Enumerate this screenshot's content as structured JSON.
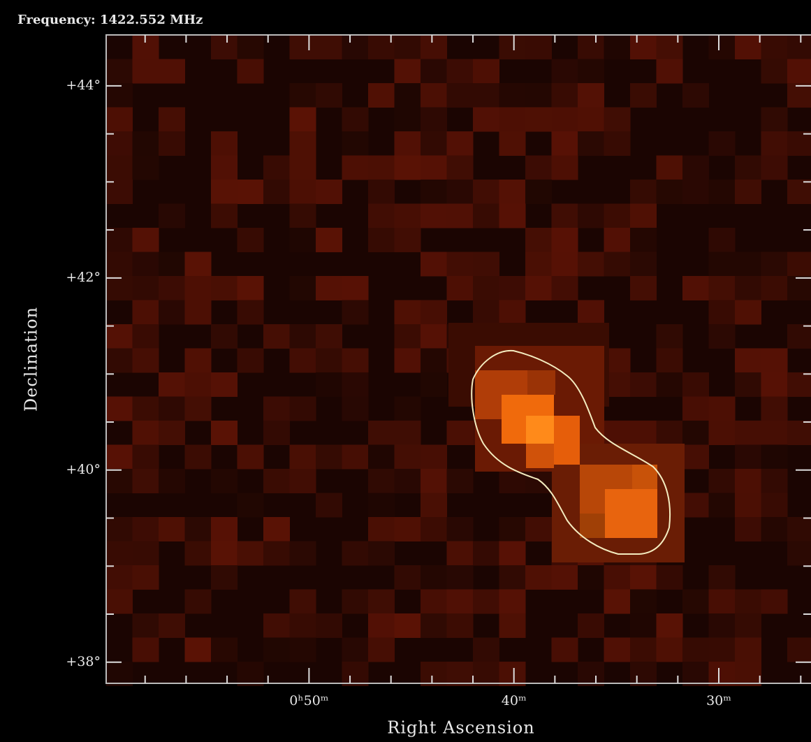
{
  "chart_data": {
    "type": "image",
    "title": "Frequency: 1422.552 MHz",
    "x_label": "Right Ascension",
    "y_label": "Declination",
    "xlim": [
      59.9,
      25.5
    ],
    "ylim": [
      37.78,
      44.53
    ],
    "xticks": [
      {
        "value": 50,
        "label": "0ʰ50ᵐ"
      },
      {
        "value": 40,
        "label": "40ᵐ"
      },
      {
        "value": 30,
        "label": "30ᵐ"
      }
    ],
    "xminorticks": [
      58,
      56,
      54,
      52,
      48,
      46,
      44,
      42,
      38,
      36,
      34,
      32,
      28,
      26
    ],
    "yticks": [
      {
        "value": 38,
        "label": "+38°"
      },
      {
        "value": 40,
        "label": "+40°"
      },
      {
        "value": 42,
        "label": "+42°"
      },
      {
        "value": 44,
        "label": "+44°"
      }
    ],
    "yminorticks": [
      38.5,
      39,
      39.5,
      40.5,
      41,
      41.5,
      42.5,
      43,
      43.5
    ]
  }
}
